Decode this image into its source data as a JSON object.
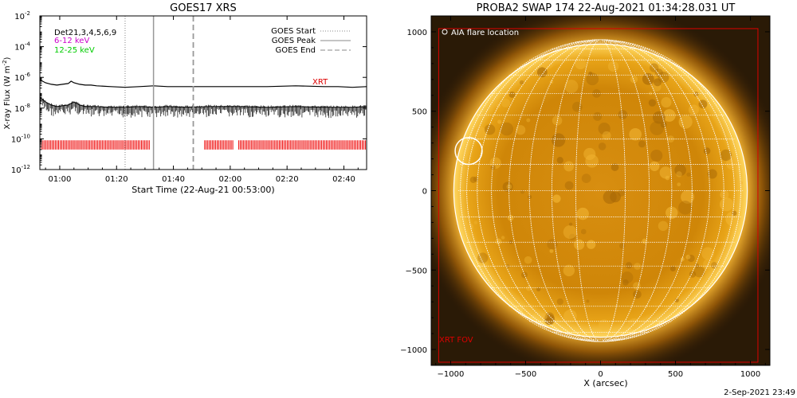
{
  "chart_data": [
    {
      "type": "line",
      "title": "GOES17 XRS",
      "xlabel": "Start Time (22-Aug-21 00:53:00)",
      "ylabel": "X-ray Flux (W m",
      "ylabel_sup": "-2",
      "ylabel_close": ")",
      "x_range_minutes": [
        0,
        115
      ],
      "y_scale": "log",
      "ylim_exp": [
        -12,
        -2
      ],
      "x_ticks": [
        {
          "min": 7,
          "label": "01:00"
        },
        {
          "min": 27,
          "label": "01:20"
        },
        {
          "min": 47,
          "label": "01:40"
        },
        {
          "min": 67,
          "label": "02:00"
        },
        {
          "min": 87,
          "label": "02:20"
        },
        {
          "min": 107,
          "label": "02:40"
        }
      ],
      "y_tick_exps": [
        -12,
        -10,
        -8,
        -6,
        -4,
        -2
      ],
      "legend_left": [
        {
          "text": "Det21,3,4,5,6,9",
          "color": "#000000"
        },
        {
          "text": "6-12 keV",
          "color": "#cc00cc"
        },
        {
          "text": "12-25 keV",
          "color": "#00cc00"
        }
      ],
      "legend_right": [
        {
          "text": "GOES Start",
          "style": "dotted"
        },
        {
          "text": "GOES Peak",
          "style": "solid"
        },
        {
          "text": "GOES End",
          "style": "dashed"
        }
      ],
      "goes_start_min": 30,
      "goes_peak_min": 40,
      "goes_end_min": 54,
      "xrt_label": "XRT",
      "series": [
        {
          "name": "upper flux",
          "x": [
            0,
            2,
            4,
            6,
            8,
            10,
            11,
            12,
            14,
            16,
            18,
            20,
            25,
            30,
            35,
            40,
            45,
            50,
            60,
            70,
            80,
            90,
            100,
            105,
            110,
            115
          ],
          "y_exp": [
            -6.15,
            -6.35,
            -6.45,
            -6.5,
            -6.45,
            -6.4,
            -6.25,
            -6.35,
            -6.45,
            -6.5,
            -6.5,
            -6.55,
            -6.6,
            -6.65,
            -6.6,
            -6.55,
            -6.6,
            -6.6,
            -6.6,
            -6.6,
            -6.6,
            -6.55,
            -6.6,
            -6.6,
            -6.65,
            -6.6
          ]
        },
        {
          "name": "lower flux",
          "x": [
            0,
            2,
            4,
            6,
            8,
            10,
            12,
            14,
            16,
            18,
            20,
            25,
            30,
            35,
            40,
            45,
            50,
            60,
            70,
            80,
            90,
            100,
            110,
            115
          ],
          "y_exp": [
            -7.3,
            -7.6,
            -7.8,
            -7.9,
            -7.85,
            -7.8,
            -7.6,
            -7.8,
            -7.9,
            -7.9,
            -7.9,
            -7.95,
            -7.95,
            -7.9,
            -7.95,
            -7.9,
            -7.95,
            -7.9,
            -7.9,
            -7.95,
            -7.9,
            -7.95,
            -7.95,
            -7.9
          ]
        }
      ],
      "xrt_coverage_minutes": [
        [
          0,
          39
        ],
        [
          58,
          68
        ],
        [
          70,
          115
        ]
      ]
    },
    {
      "type": "image",
      "title": "PROBA2 SWAP 174 22-Aug-2021 01:34:28.031 UT",
      "xlabel": "X (arcsec)",
      "xlim": [
        -1130,
        1130
      ],
      "ylim": [
        -1100,
        1100
      ],
      "x_ticks": [
        -1000,
        -500,
        0,
        500,
        1000
      ],
      "y_ticks": [
        -1000,
        -500,
        0,
        500,
        1000
      ],
      "solar_radius_arcsec": 950,
      "grid_step_deg": 10,
      "flare_location": {
        "x": -880,
        "y": 250,
        "r": 90
      },
      "aia_label": "AIA flare location",
      "xrt_fov_label": "XRT FOV",
      "xrt_fov": {
        "x0": -1080,
        "x1": 1050,
        "y0": -1080,
        "y1": 1020
      },
      "timestamp": "2-Sep-2021 23:49"
    }
  ]
}
